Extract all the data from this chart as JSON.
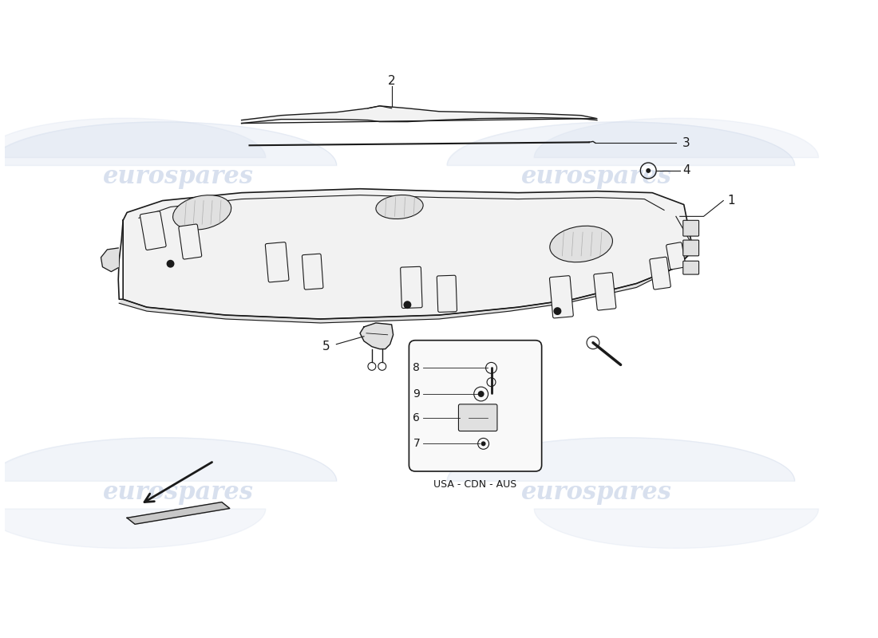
{
  "background_color": "#ffffff",
  "watermark_text": "eurospares",
  "watermark_color": "#c8d4e8",
  "line_color": "#1a1a1a",
  "light_fill": "#f2f2f2",
  "medium_fill": "#e0e0e0",
  "dark_fill": "#c8c8c8"
}
